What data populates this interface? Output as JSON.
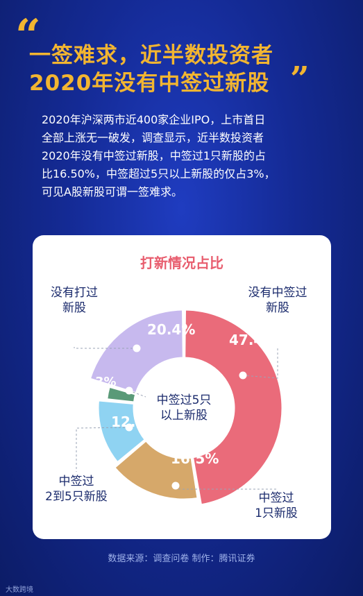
{
  "headline_line1": "一签难求，近半数投资者",
  "headline_line2": "2020年没有中签过新股",
  "quote_open": "“",
  "quote_close": "”",
  "body": [
    "2020年沪深两市近400家企业IPO，上市首日",
    "全部上涨无一破发，调查显示，近半数投资者",
    "2020年没有中签过新股，中签过1只新股的占",
    "比16.50%，中签超过5只以上新股的仅占3%，",
    "可见A股新股可谓一签难求。"
  ],
  "source": "数据来源：调查问卷  制作：腾讯证券",
  "watermark": "大数跨境",
  "chart_data": {
    "type": "pie",
    "title": "打新情况占比",
    "unit": "%",
    "slices": [
      {
        "label": [
          "没有中签过",
          "新股"
        ],
        "value": 47.4,
        "display": "47.4%",
        "color": "#ea6b7a"
      },
      {
        "label": [
          "中签过",
          "1只新股"
        ],
        "value": 16.5,
        "display": "16.5%",
        "color": "#d6a86a"
      },
      {
        "label": [
          "中签过",
          "2到5只新股"
        ],
        "value": 12.7,
        "display": "12.7%",
        "color": "#8fd3f2"
      },
      {
        "label": [
          "中签过5只",
          "以上新股"
        ],
        "value": 3.0,
        "display": "3%",
        "color": "#5a9a78"
      },
      {
        "label": [
          "没有打过",
          "新股"
        ],
        "value": 20.4,
        "display": "20.4%",
        "color": "#c7b9ee"
      }
    ]
  }
}
